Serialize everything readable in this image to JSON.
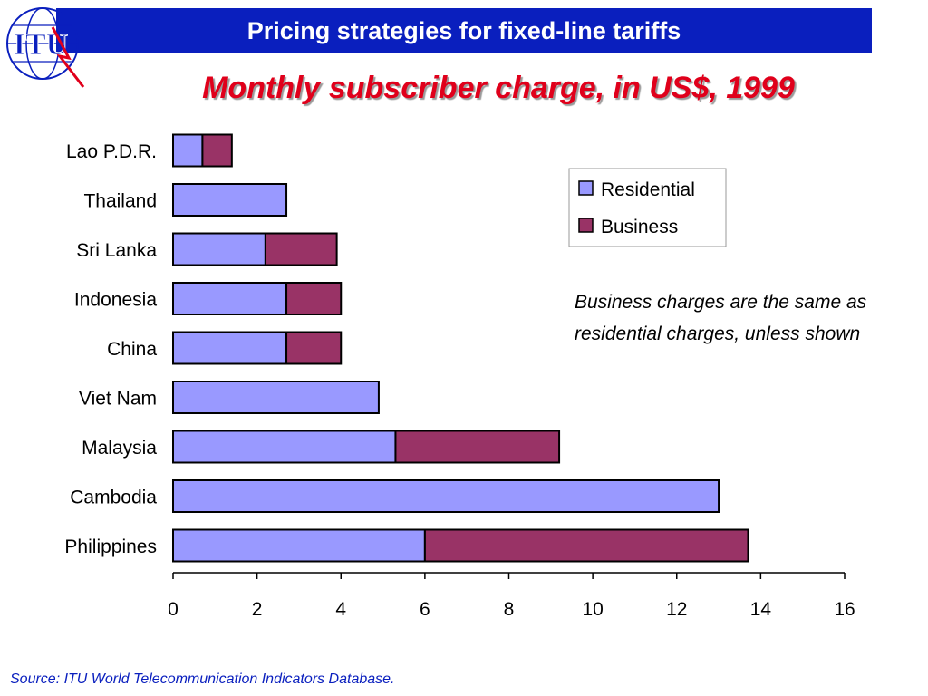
{
  "header": {
    "title": "Pricing strategies for fixed-line tariffs",
    "logo_text": "ITU"
  },
  "colors": {
    "header_bg": "#0a1fbe",
    "subtitle": "#e0001b",
    "residential": "#9999ff",
    "business": "#993366",
    "source": "#0a1fbe"
  },
  "note": "Business charges are the same as residential charges, unless shown",
  "source": "Source: ITU World Telecommunication Indicators Database.",
  "chart_data": {
    "type": "bar",
    "orientation": "horizontal",
    "stacked": true,
    "title": "Monthly subscriber charge, in US$, 1999",
    "categories": [
      "Lao P.D.R.",
      "Thailand",
      "Sri Lanka",
      "Indonesia",
      "China",
      "Viet Nam",
      "Malaysia",
      "Cambodia",
      "Philippines"
    ],
    "series": [
      {
        "name": "Residential",
        "color": "#9999ff",
        "values": [
          0.7,
          2.7,
          2.2,
          2.7,
          2.7,
          4.9,
          5.3,
          13.0,
          6.0
        ]
      },
      {
        "name": "Business",
        "color": "#993366",
        "values": [
          0.7,
          0,
          1.7,
          1.3,
          1.3,
          0,
          3.9,
          0,
          7.7
        ]
      }
    ],
    "xlim": [
      0,
      16
    ],
    "xticks": [
      0,
      2,
      4,
      6,
      8,
      10,
      12,
      14,
      16
    ],
    "grid": false,
    "legend": "right"
  }
}
